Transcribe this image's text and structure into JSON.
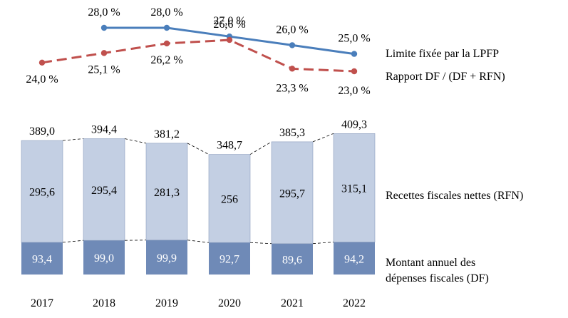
{
  "chart_data": {
    "type": "bar",
    "categories": [
      "2017",
      "2018",
      "2019",
      "2020",
      "2021",
      "2022"
    ],
    "stacked_series": [
      {
        "name": "Montant annuel des dépenses fiscales (DF)",
        "values": [
          93.4,
          99.0,
          99.9,
          92.7,
          89.6,
          94.2
        ],
        "labels": [
          "93,4",
          "99,0",
          "99,9",
          "92,7",
          "89,6",
          "94,2"
        ],
        "color": "#6f8ab7"
      },
      {
        "name": "Recettes fiscales nettes (RFN)",
        "values": [
          295.6,
          295.4,
          281.3,
          256,
          295.7,
          315.1
        ],
        "labels": [
          "295,6",
          "295,4",
          "281,3",
          "256",
          "295,7",
          "315,1"
        ],
        "color": "#c3cfe3"
      }
    ],
    "totals": {
      "values": [
        389.0,
        394.4,
        381.2,
        348.7,
        385.3,
        409.3
      ],
      "labels": [
        "389,0",
        "394,4",
        "381,2",
        "348,7",
        "385,3",
        "409,3"
      ]
    },
    "line_series": [
      {
        "name": "Limite fixée par la LPFP",
        "x": [
          "2018",
          "2019",
          "2020",
          "2021",
          "2022"
        ],
        "values": [
          28.0,
          28.0,
          27.0,
          26.0,
          25.0
        ],
        "labels": [
          "28,0 %",
          "28,0 %",
          "27,0 %",
          "26,0 %",
          "25,0 %"
        ],
        "color": "#4a7ebb",
        "style": "solid"
      },
      {
        "name": "Rapport DF / (DF + RFN)",
        "x": [
          "2017",
          "2018",
          "2019",
          "2020",
          "2021",
          "2022"
        ],
        "values": [
          24.0,
          25.1,
          26.2,
          26.6,
          23.3,
          23.0
        ],
        "labels": [
          "24,0 %",
          "25,1 %",
          "26,2 %",
          "26,6 %",
          "23,3 %",
          "23,0 %"
        ],
        "color": "#c0504d",
        "style": "dashed"
      }
    ],
    "connector_lines": "dashed",
    "legend_placement": "right",
    "grid": false
  }
}
